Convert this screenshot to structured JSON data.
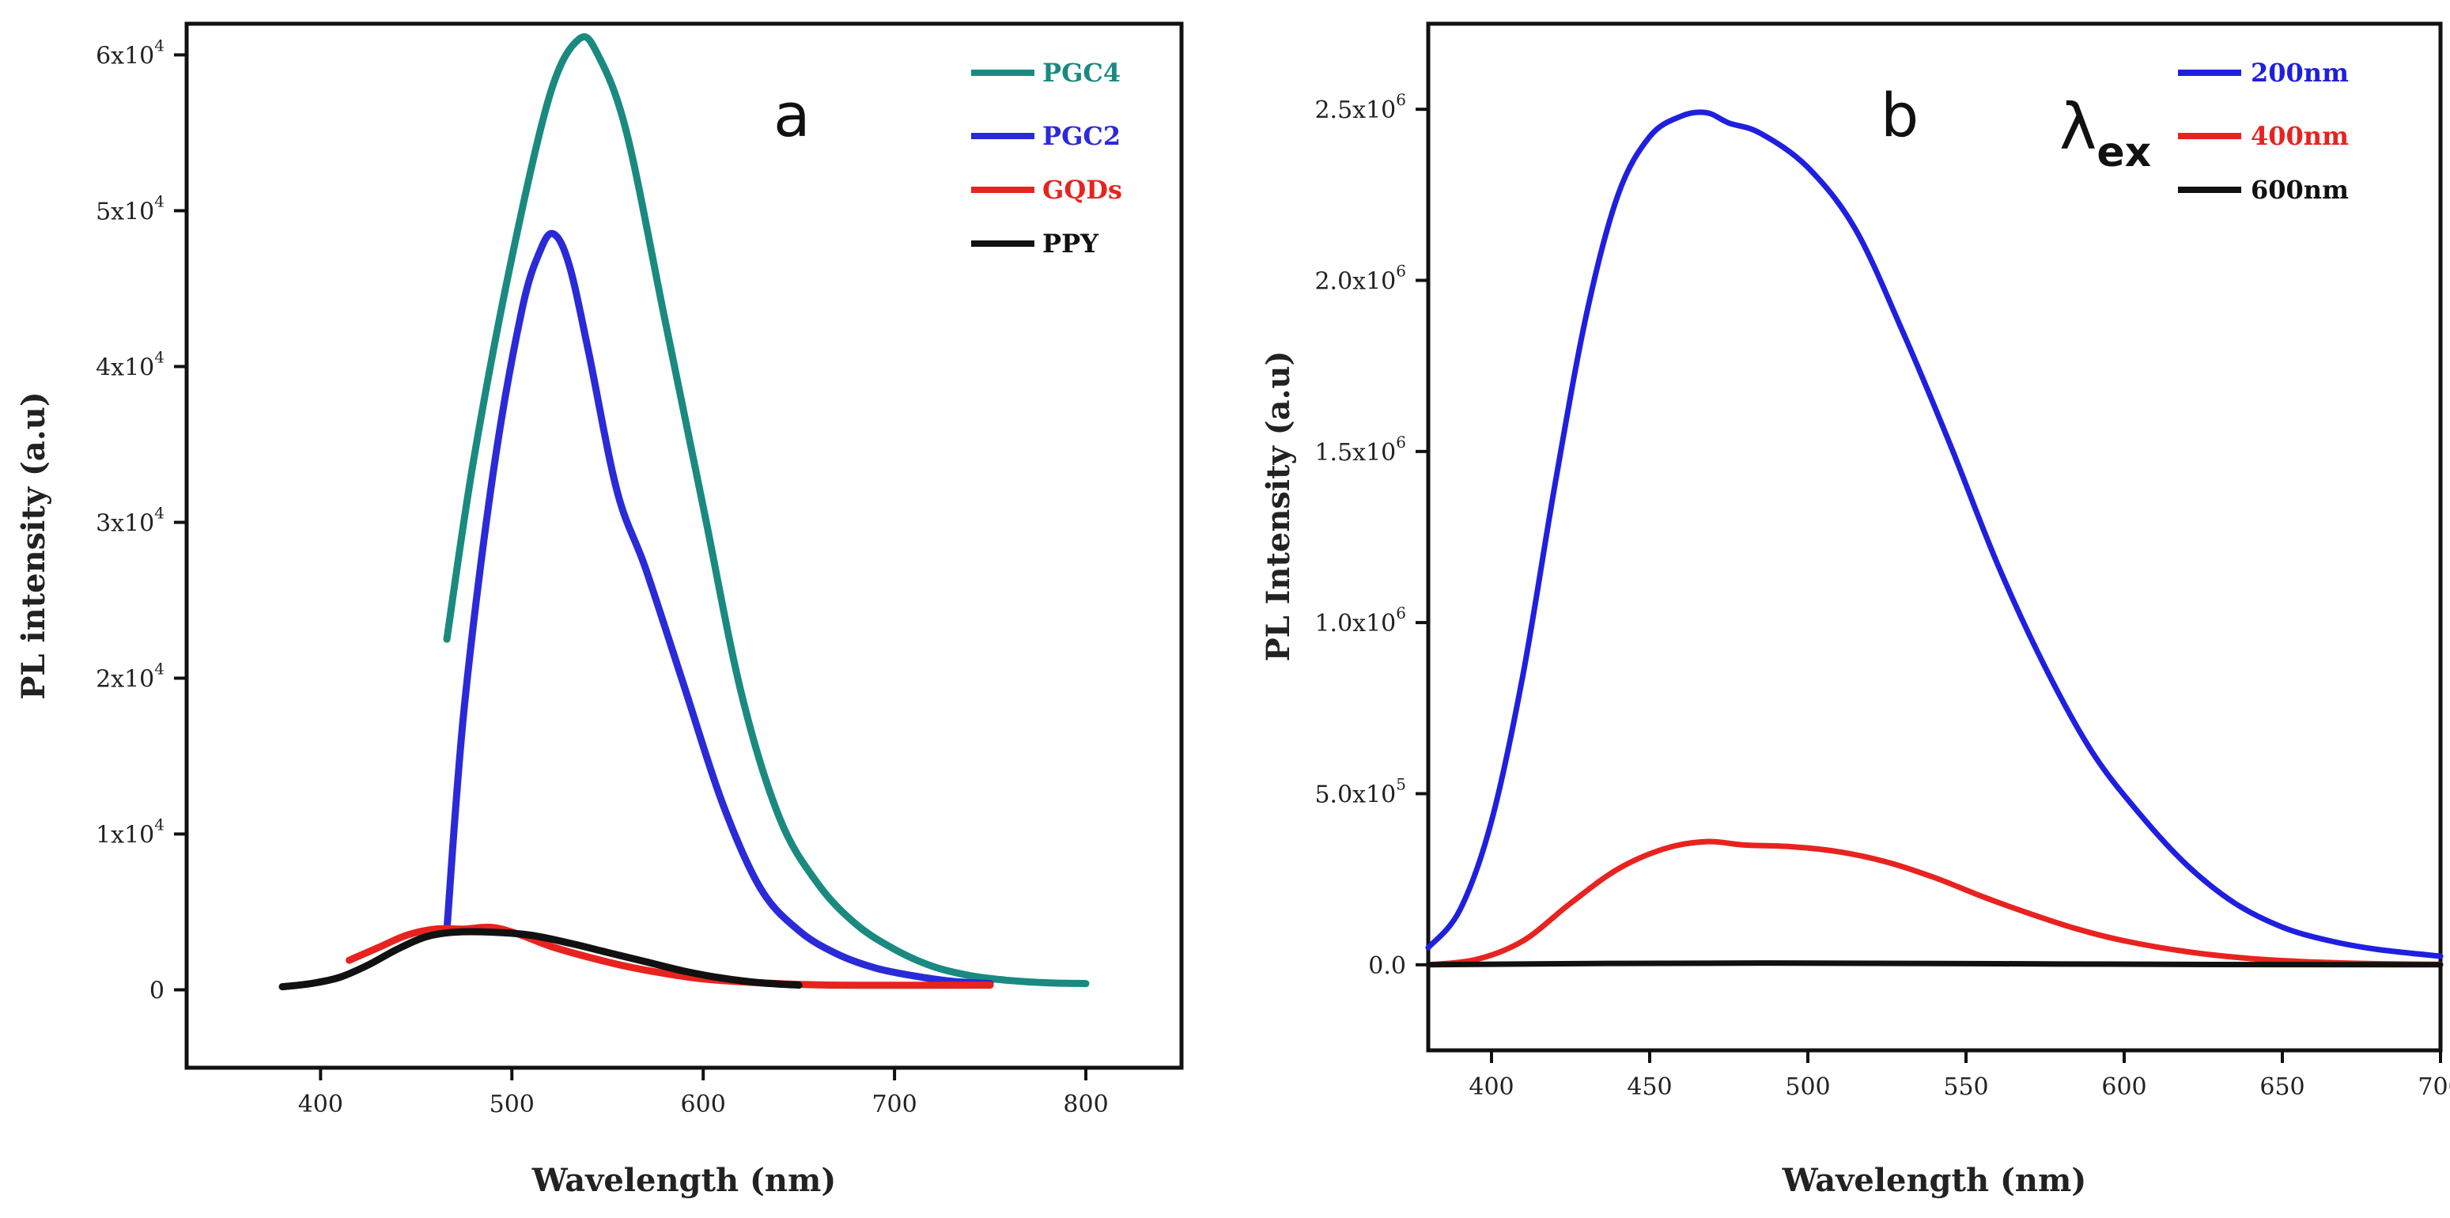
{
  "chart_data": [
    {
      "panel": "a",
      "type": "line",
      "xlabel": "Wavelength (nm)",
      "ylabel": "PL intensity (a.u)",
      "xlim": [
        330,
        850
      ],
      "ylim": [
        -5000,
        62000
      ],
      "xticks": [
        {
          "value": 400,
          "label": "400"
        },
        {
          "value": 500,
          "label": "500"
        },
        {
          "value": 600,
          "label": "600"
        },
        {
          "value": 700,
          "label": "700"
        },
        {
          "value": 800,
          "label": "800"
        }
      ],
      "yticks": [
        {
          "value": 0,
          "base": "0",
          "exp": ""
        },
        {
          "value": 10000,
          "base": "1x10",
          "exp": "4"
        },
        {
          "value": 20000,
          "base": "2x10",
          "exp": "4"
        },
        {
          "value": 30000,
          "base": "3x10",
          "exp": "4"
        },
        {
          "value": 40000,
          "base": "4x10",
          "exp": "4"
        },
        {
          "value": 50000,
          "base": "5x10",
          "exp": "4"
        },
        {
          "value": 60000,
          "base": "6x10",
          "exp": "4"
        }
      ],
      "series": [
        {
          "name": "PGC4",
          "color": "#1a8a80",
          "x": [
            466,
            480,
            500,
            520,
            535,
            545,
            560,
            580,
            600,
            620,
            640,
            660,
            680,
            700,
            720,
            740,
            760,
            780,
            800
          ],
          "y": [
            22500,
            34000,
            47000,
            57500,
            61000,
            60000,
            55000,
            43000,
            31000,
            19000,
            11000,
            6800,
            4200,
            2600,
            1500,
            900,
            600,
            450,
            400
          ]
        },
        {
          "name": "PGC2",
          "color": "#2a2ad8",
          "x": [
            466,
            475,
            490,
            505,
            515,
            522,
            530,
            540,
            555,
            570,
            590,
            610,
            630,
            650,
            670,
            690,
            710,
            730,
            750
          ],
          "y": [
            3800,
            18000,
            33000,
            43500,
            47500,
            48500,
            46500,
            41000,
            32000,
            27000,
            19500,
            12000,
            6500,
            3800,
            2300,
            1400,
            900,
            550,
            400
          ]
        },
        {
          "name": "GQDs",
          "color": "#e8231f",
          "x": [
            415,
            430,
            445,
            460,
            475,
            490,
            505,
            520,
            540,
            560,
            580,
            600,
            630,
            660,
            700,
            750
          ],
          "y": [
            1900,
            2700,
            3500,
            3900,
            3900,
            4000,
            3500,
            2800,
            2100,
            1500,
            1050,
            700,
            450,
            320,
            290,
            300
          ]
        },
        {
          "name": "PPY",
          "color": "#111111",
          "x": [
            380,
            395,
            410,
            425,
            440,
            455,
            470,
            490,
            510,
            530,
            550,
            570,
            590,
            610,
            630,
            650
          ],
          "y": [
            200,
            400,
            800,
            1600,
            2600,
            3400,
            3700,
            3700,
            3500,
            3000,
            2400,
            1800,
            1200,
            750,
            450,
            300
          ]
        }
      ]
    },
    {
      "panel": "b",
      "type": "line",
      "xlabel": "Wavelength (nm)",
      "ylabel": "PL Intensity (a.u)",
      "xlim": [
        380,
        700
      ],
      "ylim": [
        -250000,
        2750000
      ],
      "xticks": [
        {
          "value": 400,
          "label": "400"
        },
        {
          "value": 450,
          "label": "450"
        },
        {
          "value": 500,
          "label": "500"
        },
        {
          "value": 550,
          "label": "550"
        },
        {
          "value": 600,
          "label": "600"
        },
        {
          "value": 650,
          "label": "650"
        },
        {
          "value": 700,
          "label": "700"
        }
      ],
      "yticks": [
        {
          "value": 0,
          "base": "0.0",
          "exp": ""
        },
        {
          "value": 500000,
          "base": "5.0x10",
          "exp": "5"
        },
        {
          "value": 1000000,
          "base": "1.0x10",
          "exp": "6"
        },
        {
          "value": 1500000,
          "base": "1.5x10",
          "exp": "6"
        },
        {
          "value": 2000000,
          "base": "2.0x10",
          "exp": "6"
        },
        {
          "value": 2500000,
          "base": "2.5x10",
          "exp": "6"
        }
      ],
      "series": [
        {
          "name": "200nm",
          "color": "#1f1fe0",
          "x": [
            380,
            390,
            400,
            410,
            420,
            430,
            440,
            450,
            460,
            468,
            475,
            485,
            500,
            515,
            530,
            545,
            560,
            575,
            590,
            605,
            620,
            635,
            650,
            665,
            680,
            700
          ],
          "y": [
            50000,
            160000,
            420000,
            850000,
            1400000,
            1900000,
            2250000,
            2420000,
            2480000,
            2490000,
            2460000,
            2430000,
            2330000,
            2150000,
            1850000,
            1520000,
            1170000,
            870000,
            620000,
            440000,
            290000,
            180000,
            110000,
            70000,
            45000,
            25000
          ]
        },
        {
          "name": "400nm",
          "color": "#e8231f",
          "x": [
            380,
            395,
            410,
            425,
            440,
            455,
            468,
            480,
            495,
            510,
            525,
            540,
            555,
            570,
            585,
            600,
            620,
            640,
            660,
            680,
            700
          ],
          "y": [
            0,
            15000,
            70000,
            180000,
            280000,
            340000,
            360000,
            350000,
            345000,
            330000,
            300000,
            255000,
            200000,
            150000,
            105000,
            70000,
            38000,
            18000,
            8000,
            3000,
            1000
          ]
        },
        {
          "name": "600nm",
          "color": "#111111",
          "x": [
            380,
            440,
            500,
            560,
            620,
            700
          ],
          "y": [
            0,
            4000,
            5000,
            3000,
            1000,
            0
          ]
        }
      ],
      "annotation_base": "λ",
      "annotation_sub": "ex"
    }
  ]
}
